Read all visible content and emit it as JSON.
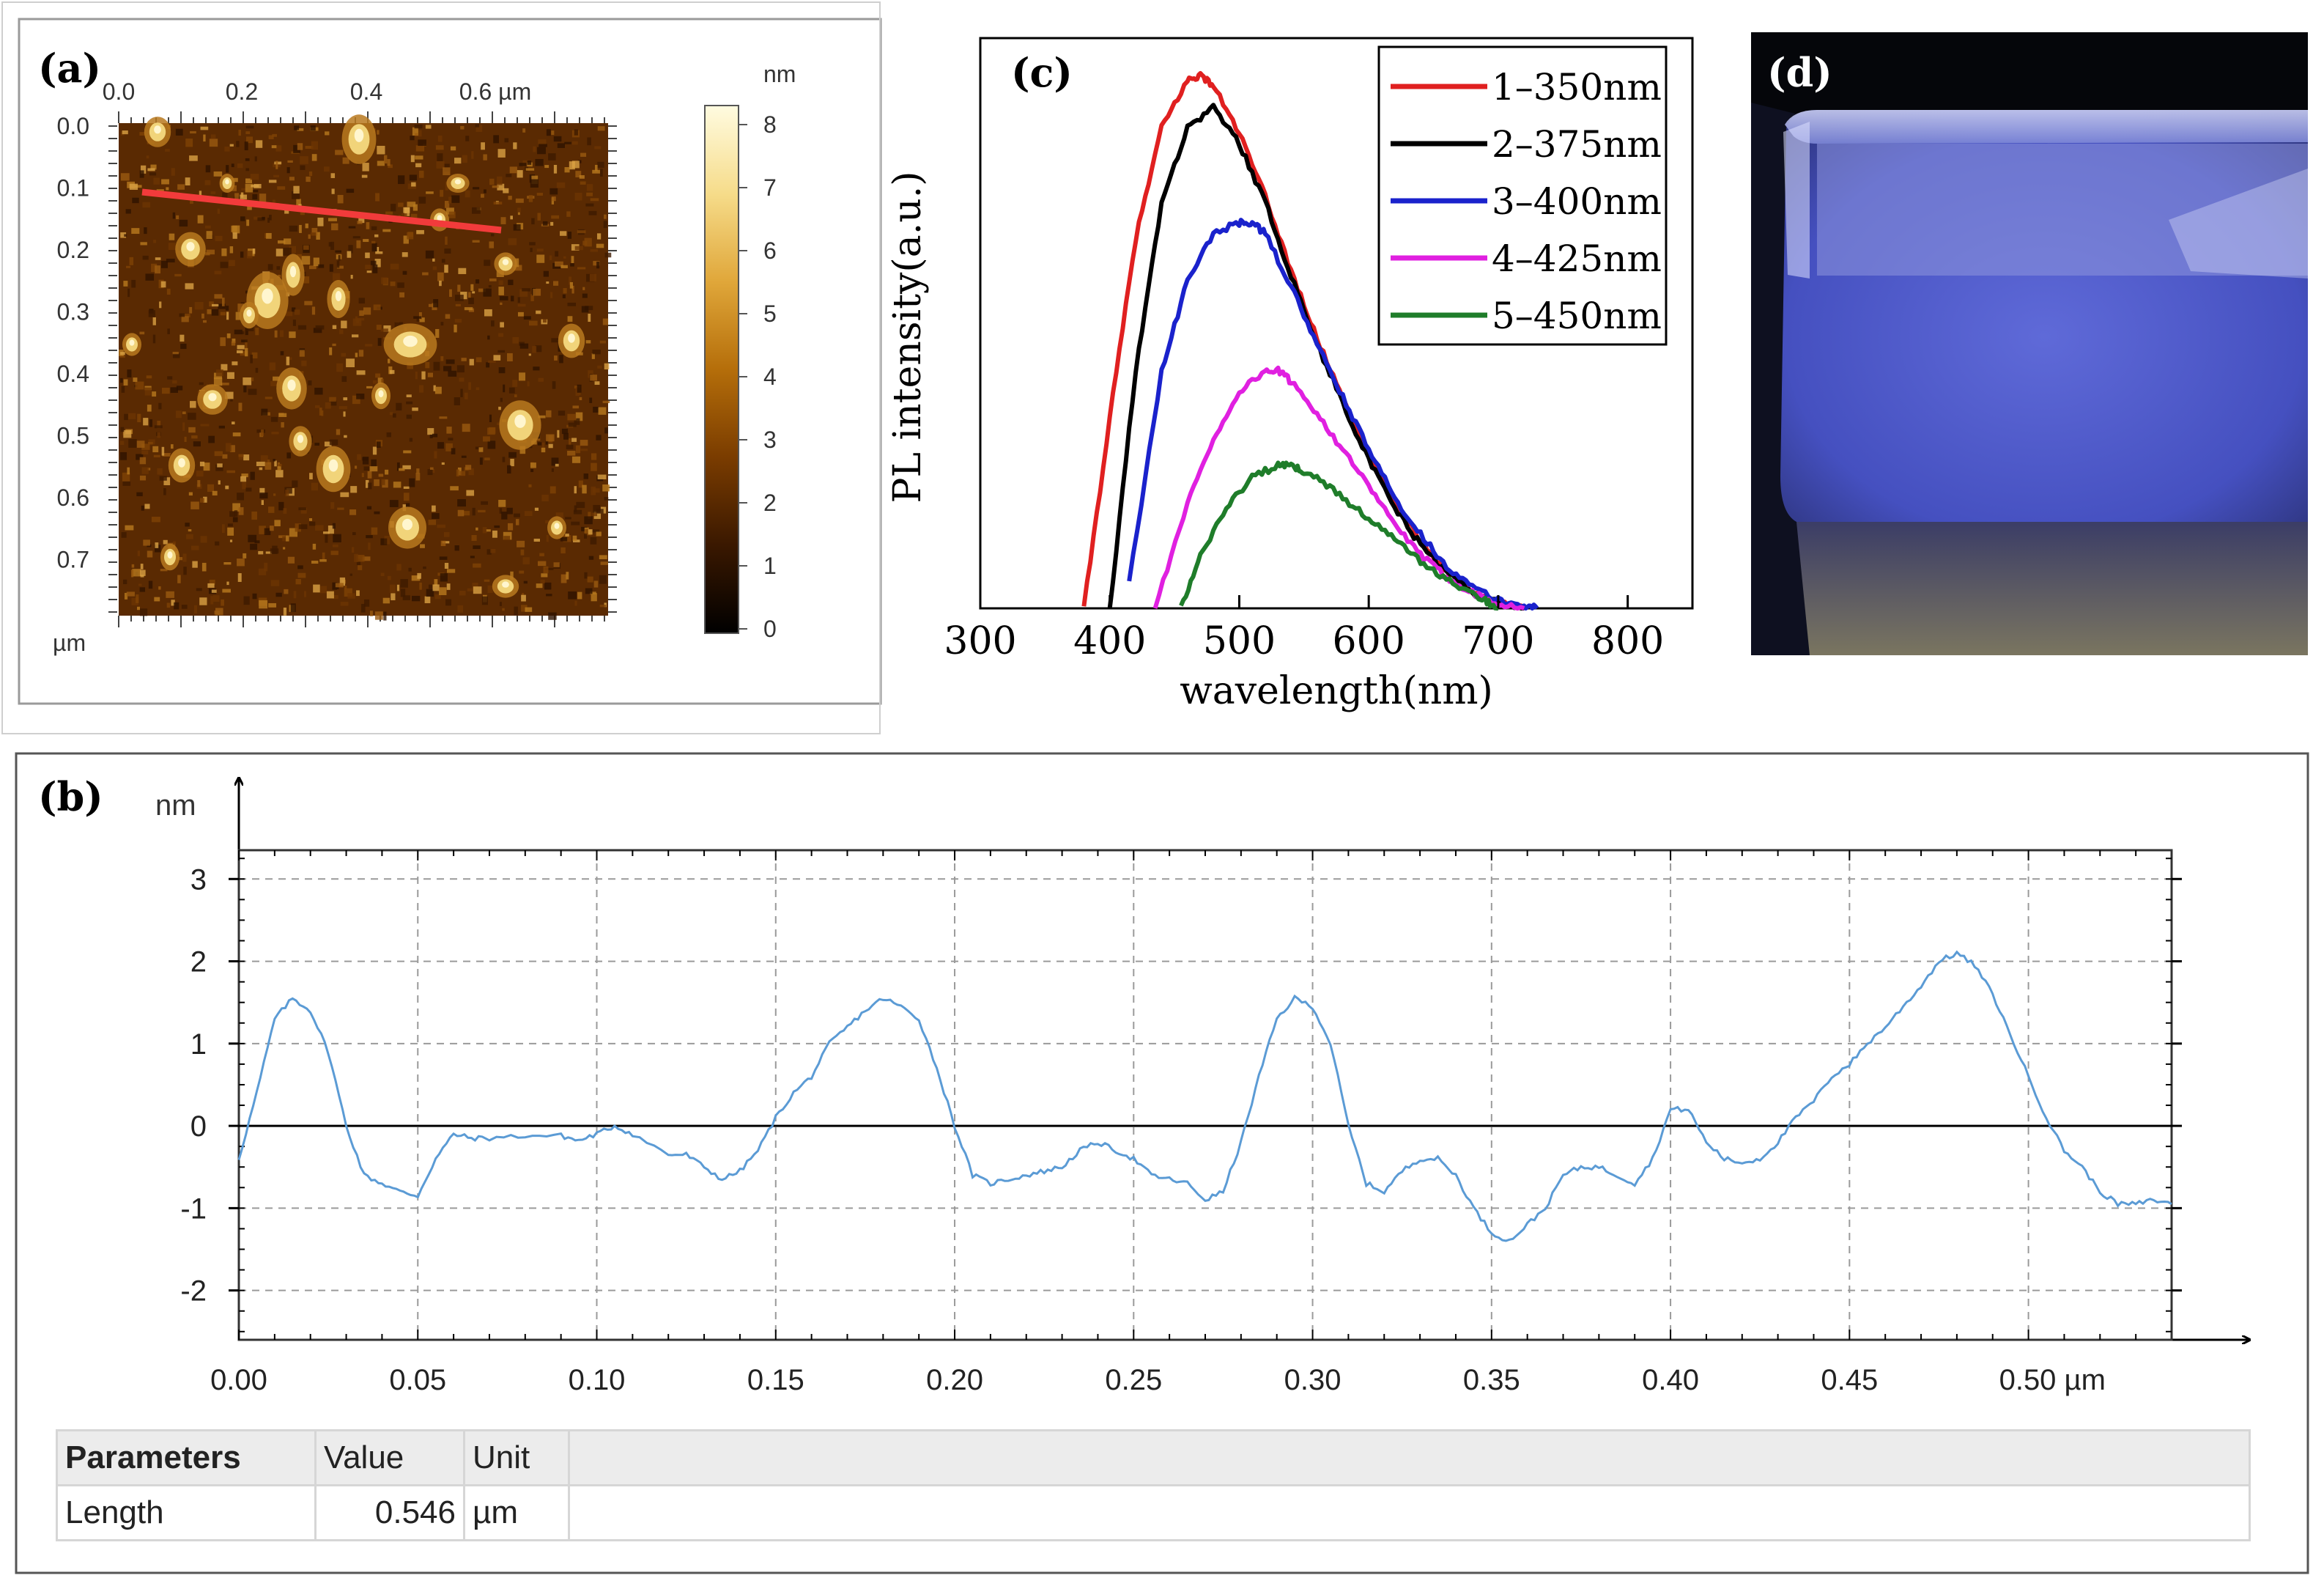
{
  "panel_a": {
    "label": "(a)",
    "x_ticks": [
      "0.0",
      "0.2",
      "0.4",
      "0.6 µm"
    ],
    "y_ticks": [
      "0.0",
      "0.1",
      "0.2",
      "0.3",
      "0.4",
      "0.5",
      "0.6",
      "0.7"
    ],
    "y_unit": "µm",
    "colorbar_unit": "nm",
    "colorbar_ticks": [
      "8",
      "7",
      "6",
      "5",
      "4",
      "3",
      "2",
      "1",
      "0"
    ],
    "colormap": [
      "#000000",
      "#3a1800",
      "#7a3c00",
      "#b56e0a",
      "#e0a73a",
      "#f6dc8a",
      "#fffbe0"
    ]
  },
  "panel_b": {
    "label": "(b)",
    "y_unit": "nm",
    "table": {
      "headers": [
        "Parameters",
        "Value",
        "Unit"
      ],
      "rows": [
        [
          "Length",
          "0.546",
          "µm"
        ]
      ]
    }
  },
  "panel_c": {
    "label": "(c)"
  },
  "panel_d": {
    "label": "(d)"
  },
  "chart_data": [
    {
      "type": "line",
      "title": "(b)",
      "xlabel": "",
      "ylabel": "nm",
      "x_unit": "µm",
      "xlim": [
        0.0,
        0.54
      ],
      "ylim": [
        -2.6,
        3.35
      ],
      "x_ticks": [
        "0.00",
        "0.05",
        "0.10",
        "0.15",
        "0.20",
        "0.25",
        "0.30",
        "0.35",
        "0.40",
        "0.45",
        "0.50 µm"
      ],
      "y_ticks": [
        "3",
        "2",
        "1",
        "0",
        "-1",
        "-2"
      ],
      "grid": true,
      "series": [
        {
          "name": "profile",
          "color": "#5b9bd5",
          "x": [
            0.0,
            0.005,
            0.01,
            0.015,
            0.02,
            0.025,
            0.03,
            0.035,
            0.04,
            0.045,
            0.05,
            0.055,
            0.06,
            0.065,
            0.07,
            0.08,
            0.09,
            0.095,
            0.1,
            0.105,
            0.11,
            0.12,
            0.125,
            0.13,
            0.135,
            0.14,
            0.145,
            0.15,
            0.155,
            0.16,
            0.165,
            0.17,
            0.175,
            0.18,
            0.185,
            0.19,
            0.195,
            0.2,
            0.205,
            0.21,
            0.215,
            0.22,
            0.225,
            0.23,
            0.235,
            0.24,
            0.245,
            0.25,
            0.255,
            0.26,
            0.265,
            0.27,
            0.275,
            0.28,
            0.285,
            0.29,
            0.295,
            0.3,
            0.305,
            0.31,
            0.315,
            0.32,
            0.325,
            0.33,
            0.335,
            0.34,
            0.345,
            0.35,
            0.355,
            0.36,
            0.365,
            0.37,
            0.375,
            0.38,
            0.385,
            0.39,
            0.395,
            0.4,
            0.405,
            0.41,
            0.415,
            0.42,
            0.425,
            0.43,
            0.435,
            0.44,
            0.445,
            0.45,
            0.455,
            0.46,
            0.465,
            0.47,
            0.475,
            0.48,
            0.485,
            0.49,
            0.495,
            0.5,
            0.505,
            0.51,
            0.515,
            0.52,
            0.525,
            0.53,
            0.535,
            0.54
          ],
          "y": [
            -0.4,
            0.4,
            1.3,
            1.55,
            1.4,
            0.9,
            0.0,
            -0.6,
            -0.7,
            -0.8,
            -0.85,
            -0.4,
            -0.1,
            -0.15,
            -0.15,
            -0.12,
            -0.12,
            -0.18,
            -0.1,
            0.0,
            -0.1,
            -0.35,
            -0.35,
            -0.5,
            -0.65,
            -0.55,
            -0.3,
            0.1,
            0.4,
            0.6,
            1.0,
            1.2,
            1.4,
            1.55,
            1.45,
            1.3,
            0.7,
            0.0,
            -0.6,
            -0.7,
            -0.65,
            -0.6,
            -0.55,
            -0.5,
            -0.3,
            -0.2,
            -0.3,
            -0.4,
            -0.6,
            -0.65,
            -0.7,
            -0.9,
            -0.8,
            -0.2,
            0.6,
            1.3,
            1.55,
            1.45,
            1.0,
            0.0,
            -0.7,
            -0.8,
            -0.55,
            -0.4,
            -0.4,
            -0.6,
            -1.0,
            -1.3,
            -1.4,
            -1.2,
            -1.0,
            -0.6,
            -0.5,
            -0.5,
            -0.6,
            -0.7,
            -0.4,
            0.2,
            0.2,
            -0.2,
            -0.4,
            -0.45,
            -0.4,
            -0.2,
            0.1,
            0.3,
            0.6,
            0.75,
            1.0,
            1.2,
            1.45,
            1.7,
            2.0,
            2.1,
            1.95,
            1.6,
            1.1,
            0.6,
            0.1,
            -0.3,
            -0.5,
            -0.8,
            -0.95,
            -0.95,
            -0.9,
            -0.95
          ]
        }
      ]
    },
    {
      "type": "line",
      "title": "(c)",
      "xlabel": "wavelength(nm)",
      "ylabel": "PL intensity(a.u.)",
      "xlim": [
        300,
        850
      ],
      "ylim": [
        0,
        1.08
      ],
      "x_ticks": [
        "300",
        "400",
        "500",
        "600",
        "700",
        "800"
      ],
      "legend_position": "top-right",
      "series": [
        {
          "name": "1–350nm",
          "color": "#e02020",
          "x": [
            380,
            400,
            420,
            440,
            460,
            470,
            480,
            500,
            520,
            540,
            560,
            580,
            600,
            620,
            640,
            660,
            680,
            700,
            720
          ],
          "y": [
            0.0,
            0.36,
            0.7,
            0.91,
            1.0,
            1.01,
            0.99,
            0.9,
            0.78,
            0.64,
            0.51,
            0.4,
            0.29,
            0.2,
            0.13,
            0.07,
            0.035,
            0.01,
            0.0
          ]
        },
        {
          "name": "2–375nm",
          "color": "#000000",
          "x": [
            400,
            420,
            440,
            460,
            480,
            500,
            520,
            540,
            560,
            580,
            600,
            620,
            640,
            660,
            680,
            700,
            720
          ],
          "y": [
            0.0,
            0.45,
            0.77,
            0.91,
            0.95,
            0.88,
            0.77,
            0.63,
            0.5,
            0.39,
            0.28,
            0.19,
            0.12,
            0.07,
            0.03,
            0.01,
            0.0
          ]
        },
        {
          "name": "3–400nm",
          "color": "#1a22cc",
          "x": [
            415,
            440,
            460,
            480,
            500,
            510,
            520,
            540,
            560,
            580,
            600,
            620,
            640,
            660,
            680,
            700,
            720,
            730
          ],
          "y": [
            0.05,
            0.45,
            0.62,
            0.71,
            0.73,
            0.73,
            0.71,
            0.61,
            0.5,
            0.4,
            0.3,
            0.21,
            0.14,
            0.08,
            0.04,
            0.015,
            0.005,
            0.0
          ]
        },
        {
          "name": "4–425nm",
          "color": "#e020e0",
          "x": [
            435,
            460,
            480,
            500,
            520,
            530,
            540,
            560,
            580,
            600,
            620,
            640,
            660,
            680,
            700,
            720
          ],
          "y": [
            0.0,
            0.2,
            0.32,
            0.41,
            0.45,
            0.45,
            0.43,
            0.37,
            0.3,
            0.23,
            0.16,
            0.1,
            0.06,
            0.03,
            0.01,
            0.0
          ]
        },
        {
          "name": "5–450nm",
          "color": "#1f7d2a",
          "x": [
            455,
            470,
            490,
            510,
            530,
            540,
            550,
            570,
            590,
            610,
            630,
            650,
            670,
            690,
            700
          ],
          "y": [
            0.0,
            0.1,
            0.19,
            0.25,
            0.27,
            0.27,
            0.26,
            0.23,
            0.19,
            0.15,
            0.11,
            0.07,
            0.04,
            0.015,
            0.0
          ]
        }
      ]
    }
  ]
}
